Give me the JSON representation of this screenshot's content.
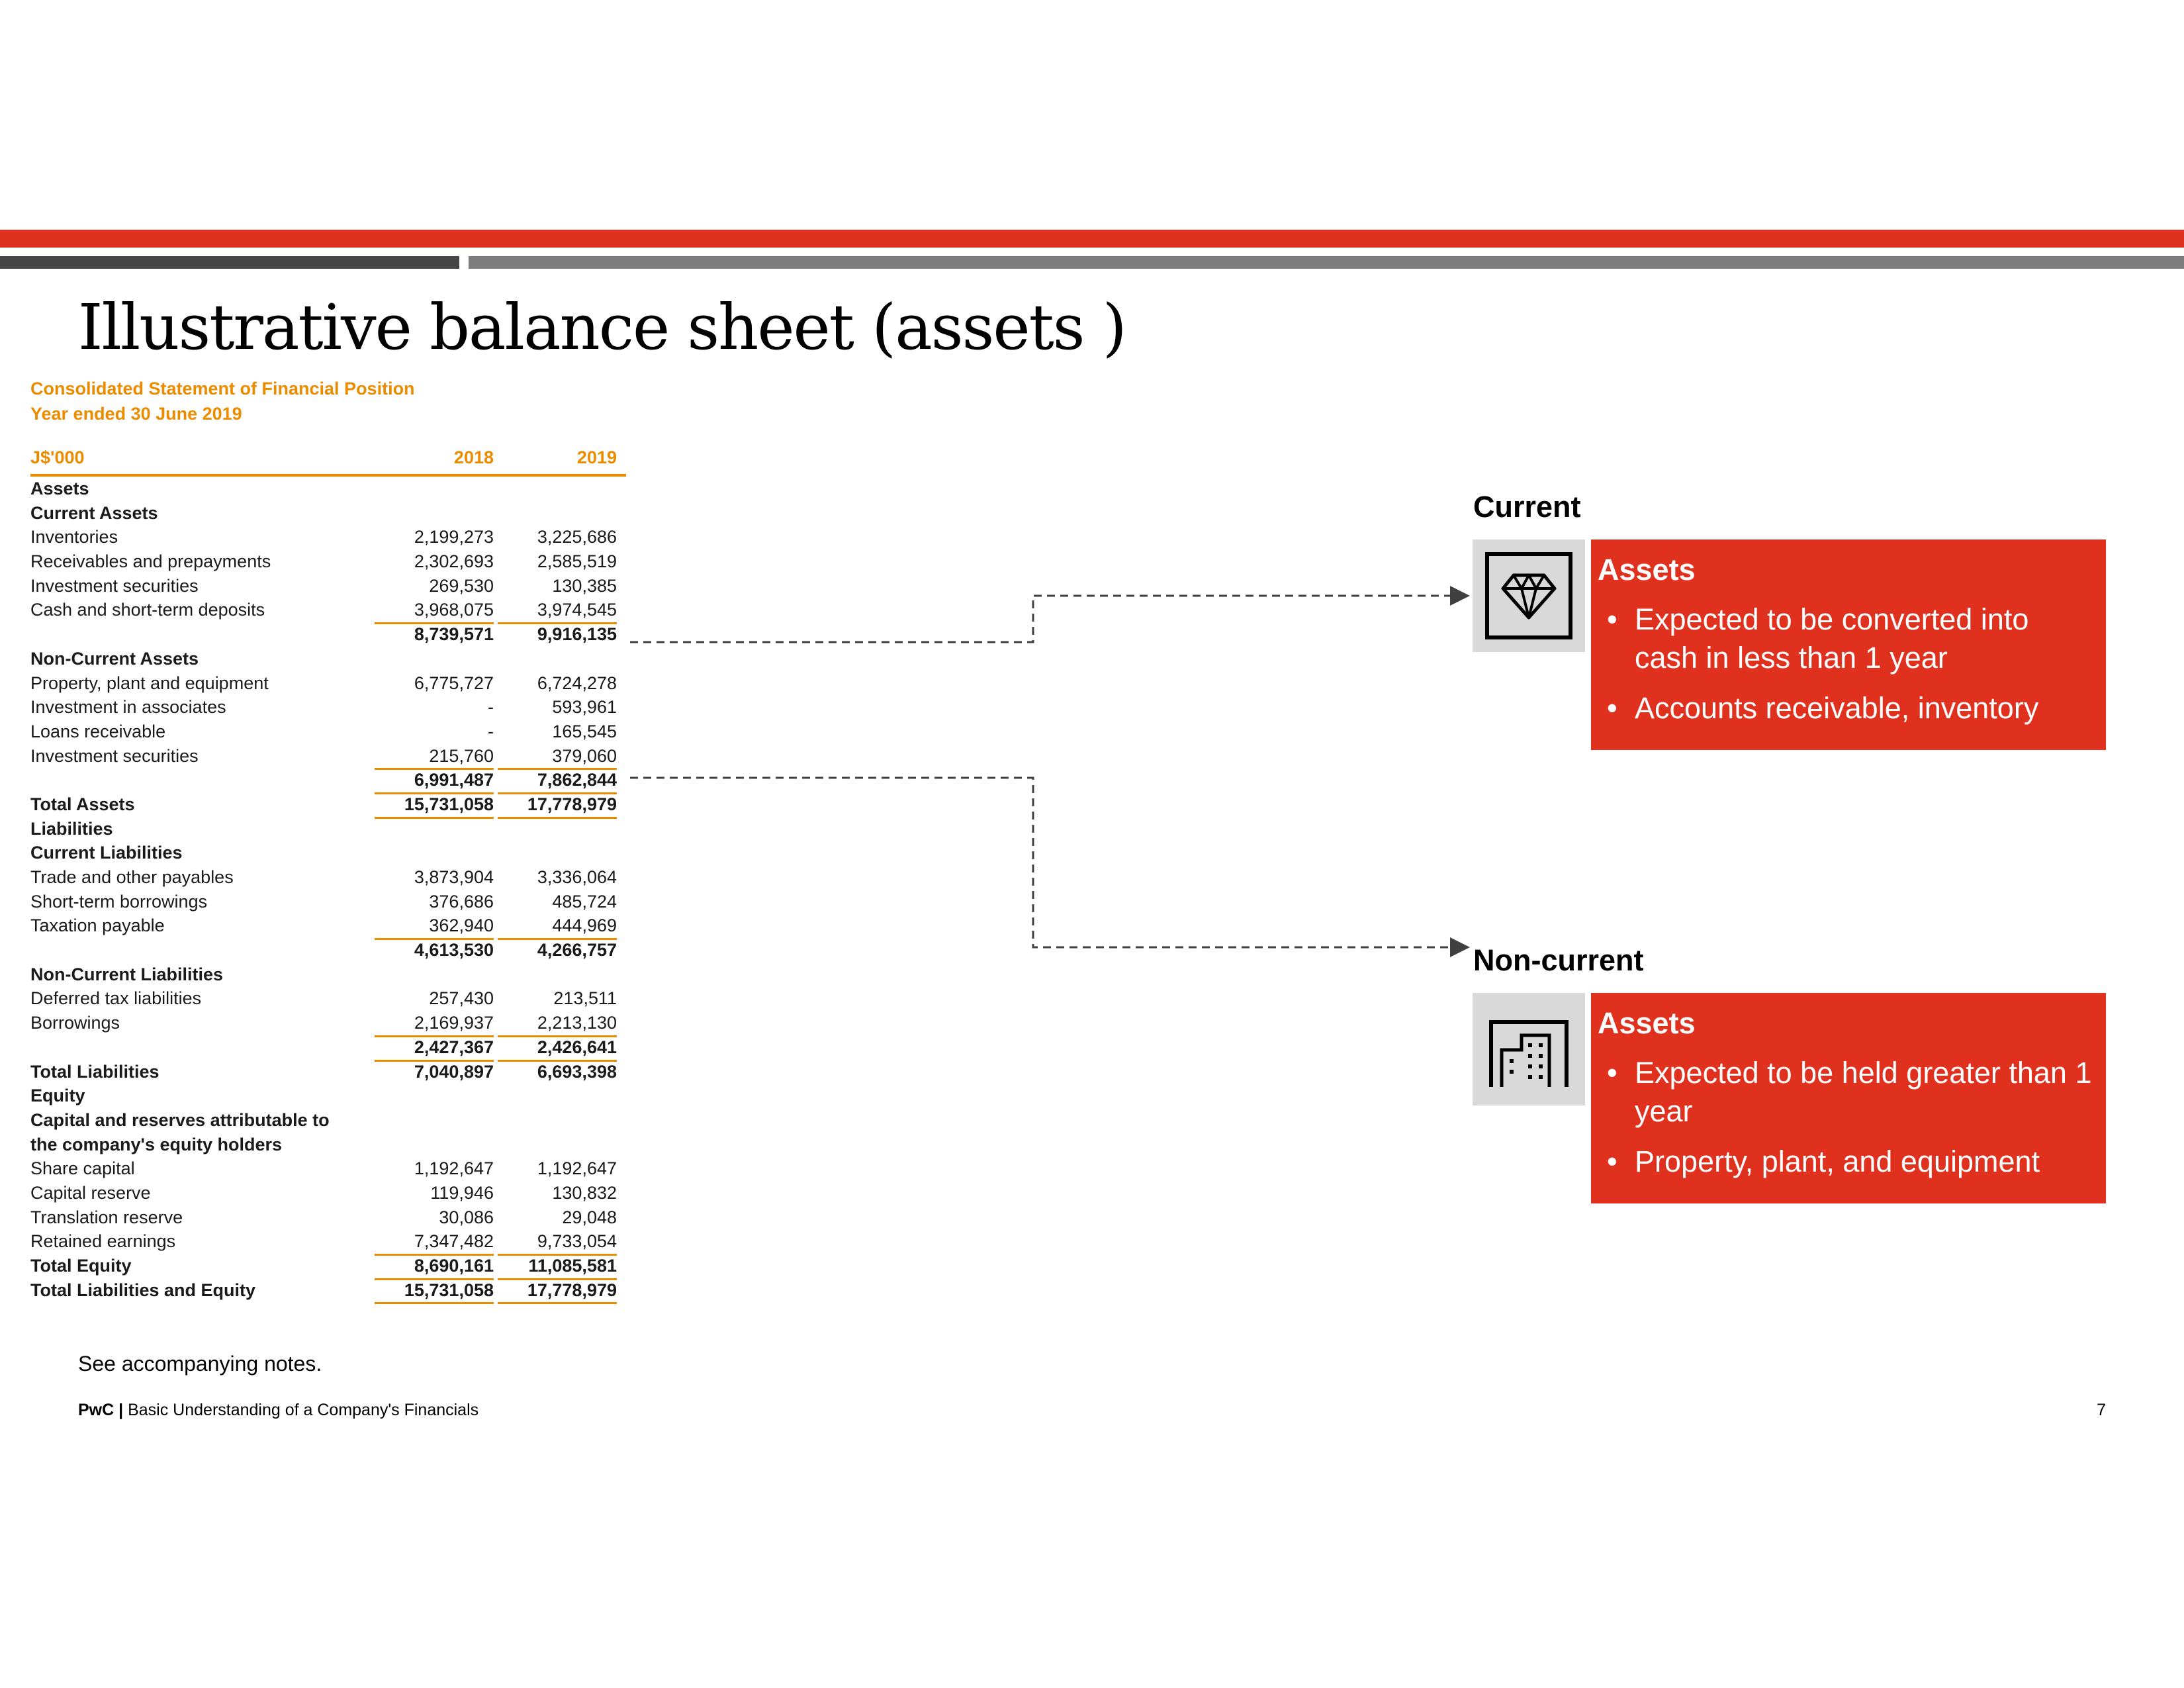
{
  "slide": {
    "title": "Illustrative balance sheet (assets )",
    "note": "See accompanying notes.",
    "footer_brand": "PwC",
    "footer_sep": "|",
    "footer_text": "Basic Understanding of a Company's Financials",
    "page_number": "7"
  },
  "colors": {
    "accent_red": "#e0301e",
    "accent_orange": "#eb8c00",
    "icon_bg": "#d9d9d9"
  },
  "statement": {
    "title": "Consolidated Statement of Financial Position",
    "subtitle": "Year ended 30 June 2019",
    "unit": "J$'000",
    "col1": "2018",
    "col2": "2019",
    "rows": [
      {
        "label": "Assets",
        "v1": "",
        "v2": "",
        "bold": true
      },
      {
        "label": "Current Assets",
        "v1": "",
        "v2": "",
        "bold": true
      },
      {
        "label": "Inventories",
        "v1": "2,199,273",
        "v2": "3,225,686"
      },
      {
        "label": "Receivables and prepayments",
        "v1": "2,302,693",
        "v2": "2,585,519"
      },
      {
        "label": "Investment securities",
        "v1": "269,530",
        "v2": "130,385"
      },
      {
        "label": "Cash and short-term deposits",
        "v1": "3,968,075",
        "v2": "3,974,545",
        "under": true
      },
      {
        "label": "",
        "v1": "8,739,571",
        "v2": "9,916,135",
        "bold": true
      },
      {
        "label": "Non-Current Assets",
        "v1": "",
        "v2": "",
        "bold": true
      },
      {
        "label": "Property, plant and equipment",
        "v1": "6,775,727",
        "v2": "6,724,278"
      },
      {
        "label": "Investment in associates",
        "v1": "-",
        "v2": "593,961"
      },
      {
        "label": "Loans receivable",
        "v1": "-",
        "v2": "165,545"
      },
      {
        "label": "Investment securities",
        "v1": "215,760",
        "v2": "379,060",
        "under": true
      },
      {
        "label": "",
        "v1": "6,991,487",
        "v2": "7,862,844",
        "bold": true,
        "under": true
      },
      {
        "label": "Total Assets",
        "v1": "15,731,058",
        "v2": "17,778,979",
        "bold": true,
        "under": true
      },
      {
        "label": "Liabilities",
        "v1": "",
        "v2": "",
        "bold": true
      },
      {
        "label": "Current Liabilities",
        "v1": "",
        "v2": "",
        "bold": true
      },
      {
        "label": "Trade and other payables",
        "v1": "3,873,904",
        "v2": "3,336,064"
      },
      {
        "label": "Short-term borrowings",
        "v1": "376,686",
        "v2": "485,724"
      },
      {
        "label": "Taxation payable",
        "v1": "362,940",
        "v2": "444,969",
        "under": true
      },
      {
        "label": "",
        "v1": "4,613,530",
        "v2": "4,266,757",
        "bold": true
      },
      {
        "label": "Non-Current Liabilities",
        "v1": "",
        "v2": "",
        "bold": true
      },
      {
        "label": "Deferred tax liabilities",
        "v1": "257,430",
        "v2": "213,511"
      },
      {
        "label": "Borrowings",
        "v1": "2,169,937",
        "v2": "2,213,130",
        "under": true
      },
      {
        "label": "",
        "v1": "2,427,367",
        "v2": "2,426,641",
        "bold": true,
        "under": true
      },
      {
        "label": "Total Liabilities",
        "v1": "7,040,897",
        "v2": "6,693,398",
        "bold": true
      },
      {
        "label": "Equity",
        "v1": "",
        "v2": "",
        "bold": true
      },
      {
        "label": "Capital and reserves attributable to",
        "v1": "",
        "v2": "",
        "bold": true
      },
      {
        "label": "the company's equity holders",
        "v1": "",
        "v2": "",
        "bold": true
      },
      {
        "label": "Share capital",
        "v1": "1,192,647",
        "v2": "1,192,647"
      },
      {
        "label": "Capital reserve",
        "v1": "119,946",
        "v2": "130,832"
      },
      {
        "label": "Translation reserve",
        "v1": "30,086",
        "v2": "29,048"
      },
      {
        "label": "Retained earnings",
        "v1": "7,347,482",
        "v2": "9,733,054",
        "under": true
      },
      {
        "label": "Total Equity",
        "v1": "8,690,161",
        "v2": "11,085,581",
        "bold": true,
        "under": true
      },
      {
        "label": "Total Liabilities and Equity",
        "v1": "15,731,058",
        "v2": "17,778,979",
        "bold": true,
        "under": true
      }
    ]
  },
  "current": {
    "label": "Current",
    "icon": "diamond-icon",
    "heading": "Assets",
    "bullets": [
      "Expected to be converted into cash in less than 1 year",
      "Accounts receivable, inventory"
    ]
  },
  "noncurrent": {
    "label": "Non-current",
    "icon": "building-icon",
    "heading": "Assets",
    "bullets": [
      "Expected to be held greater than 1 year",
      "Property, plant, and equipment"
    ]
  }
}
